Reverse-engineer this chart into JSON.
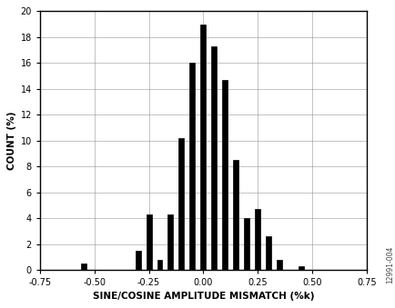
{
  "bar_centers": [
    -0.55,
    -0.3,
    -0.25,
    -0.2,
    -0.15,
    -0.1,
    -0.05,
    0.0,
    0.05,
    0.1,
    0.15,
    0.2,
    0.25,
    0.3,
    0.35,
    0.45
  ],
  "bar_heights": [
    0.5,
    1.5,
    4.3,
    0.8,
    4.3,
    10.2,
    16.0,
    19.0,
    17.3,
    14.7,
    8.5,
    4.0,
    4.7,
    2.6,
    0.8,
    0.3
  ],
  "bar_width": 0.025,
  "bar_color": "#000000",
  "xlim": [
    -0.75,
    0.75
  ],
  "ylim": [
    0,
    20
  ],
  "xticks": [
    -0.75,
    -0.5,
    -0.25,
    0.0,
    0.25,
    0.5,
    0.75
  ],
  "yticks": [
    0,
    2,
    4,
    6,
    8,
    10,
    12,
    14,
    16,
    18,
    20
  ],
  "xlabel": "SINE/COSINE AMPLITUDE MISMATCH (%k)",
  "ylabel": "COUNT (%)",
  "grid_color": "#888888",
  "bg_color": "#ffffff",
  "watermark": "12991-004",
  "xlabel_fontsize": 7.5,
  "ylabel_fontsize": 7.5,
  "tick_fontsize": 7,
  "fig_width": 4.35,
  "fig_height": 3.39,
  "dpi": 100
}
